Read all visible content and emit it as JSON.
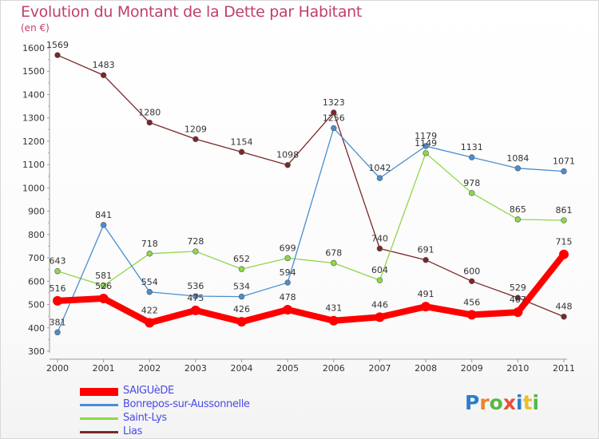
{
  "title": "Evolution du Montant de la Dette par Habitant",
  "subtitle": "(en €)",
  "brand": {
    "letters": [
      "P",
      "r",
      "o",
      "x",
      "i",
      "t",
      "i"
    ],
    "colors": [
      "#2b7ec9",
      "#e8842c",
      "#58b847",
      "#e84e3c",
      "#2b7ec9",
      "#e8c02c",
      "#58b847"
    ]
  },
  "chart_data": {
    "type": "line",
    "x": [
      "2000",
      "2001",
      "2002",
      "2003",
      "2004",
      "2005",
      "2006",
      "2007",
      "2008",
      "2009",
      "2010",
      "2011"
    ],
    "yticks": [
      "300",
      "400",
      "500",
      "600",
      "700",
      "800",
      "900",
      "1000",
      "1100",
      "1200",
      "1300",
      "1400",
      "1500",
      "1600"
    ],
    "ylim": [
      300,
      1600
    ],
    "grid": false,
    "legend_position": "bottom-left",
    "series": [
      {
        "name": "Lias",
        "color": "#7a2828",
        "values": [
          1569,
          1483,
          1280,
          1209,
          1154,
          1098,
          1323,
          740,
          691,
          600,
          529,
          448
        ],
        "labels": [
          "1569",
          "1483",
          "1280",
          "1209",
          "1154",
          "1098",
          "1323",
          "740",
          "691",
          "600",
          "529",
          "448"
        ]
      },
      {
        "name": "Saint-Lys",
        "color": "#8ed84a",
        "values": [
          643,
          581,
          718,
          728,
          652,
          699,
          678,
          604,
          1149,
          978,
          865,
          861
        ],
        "labels": [
          "643",
          "581",
          "718",
          "728",
          "652",
          "699",
          "678",
          "604",
          "1149",
          "978",
          "865",
          "861"
        ]
      },
      {
        "name": "Bonrepos-sur-Aussonnelle",
        "color": "#4a8ed0",
        "values": [
          381,
          841,
          554,
          536,
          534,
          594,
          1256,
          1042,
          1179,
          1131,
          1084,
          1071
        ],
        "labels": [
          "381",
          "841",
          "554",
          "536",
          "534",
          "594",
          "1256",
          "1042",
          "1179",
          "1131",
          "1084",
          "1071"
        ]
      },
      {
        "name": "SAIGUèDE",
        "color": "#ff0000",
        "values": [
          516,
          526,
          422,
          475,
          426,
          478,
          431,
          446,
          491,
          456,
          467,
          715
        ],
        "labels": [
          "516",
          "526",
          "422",
          "475",
          "426",
          "478",
          "431",
          "446",
          "491",
          "456",
          "467",
          "715"
        ]
      }
    ]
  }
}
